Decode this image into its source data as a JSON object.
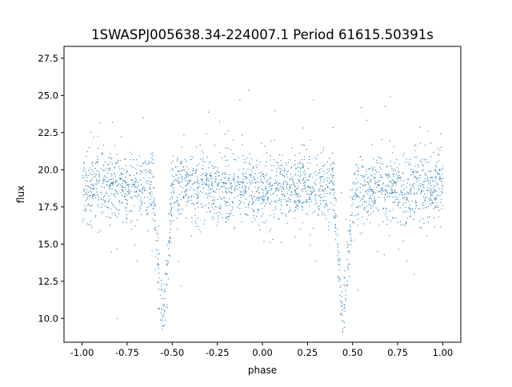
{
  "chart_data": {
    "type": "scatter",
    "title": "1SWASPJ005638.34-224007.1 Period 61615.50391s",
    "xlabel": "phase",
    "ylabel": "flux",
    "xlim": [
      -1.1,
      1.1
    ],
    "ylim": [
      8.4,
      28.3
    ],
    "xticks": [
      "-1.00",
      "-0.75",
      "-0.50",
      "-0.25",
      "0.00",
      "0.25",
      "0.50",
      "0.75",
      "1.00"
    ],
    "xtick_values": [
      -1.0,
      -0.75,
      -0.5,
      -0.25,
      0.0,
      0.25,
      0.5,
      0.75,
      1.0
    ],
    "yticks": [
      "10.0",
      "12.5",
      "15.0",
      "17.5",
      "20.0",
      "22.5",
      "25.0",
      "27.5"
    ],
    "ytick_values": [
      10.0,
      12.5,
      15.0,
      17.5,
      20.0,
      22.5,
      25.0,
      27.5
    ],
    "grid": false,
    "series": [
      {
        "color": "#1f77b4",
        "phase_range": [
          -1.0,
          1.0
        ],
        "baseline_flux": 18.8,
        "eclipses": [
          {
            "phase": -0.555,
            "min_flux": 9.5
          },
          {
            "phase": 0.445,
            "min_flux": 9.5
          }
        ]
      }
    ]
  }
}
